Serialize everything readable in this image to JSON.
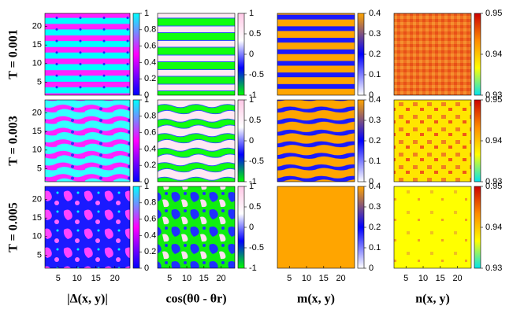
{
  "chart_data": {
    "type": "heatmap-grid",
    "rows": [
      "T = 0.001",
      "T = 0.003",
      "T = 0.005"
    ],
    "columns": [
      {
        "label": "|Δ(x, y)|",
        "clim": [
          0,
          1
        ],
        "cticks": [
          0,
          0.2,
          0.4,
          0.6,
          0.8,
          1
        ],
        "colors": [
          "#0000ff",
          "#ff00ff",
          "#00ffff"
        ]
      },
      {
        "label": "cos(θ0 - θr)",
        "clim": [
          -1,
          1
        ],
        "cticks": [
          -1,
          -0.5,
          0,
          0.5,
          1
        ],
        "colors": [
          "#00ff00",
          "#0000ff",
          "#ffffff",
          "#ffc8e6"
        ]
      },
      {
        "label": "m(x, y)",
        "clim": [
          0,
          0.4
        ],
        "cticks": [
          0,
          0.1,
          0.2,
          0.3,
          0.4
        ],
        "colors": [
          "#ffffff",
          "#0000ff",
          "#ffa500"
        ]
      },
      {
        "label": "n(x, y)",
        "clim": [
          0.93,
          0.95
        ],
        "cticks": [
          0.93,
          0.94,
          0.95
        ],
        "colors": [
          "#00e5ee",
          "#ffff00",
          "#ff8c00",
          "#cc0000"
        ]
      }
    ],
    "xlim": [
      1.5,
      24
    ],
    "xticks": [
      5,
      10,
      15,
      20
    ],
    "ylim": [
      1.5,
      23.5
    ],
    "yticks": [
      5,
      10,
      15,
      20
    ]
  }
}
